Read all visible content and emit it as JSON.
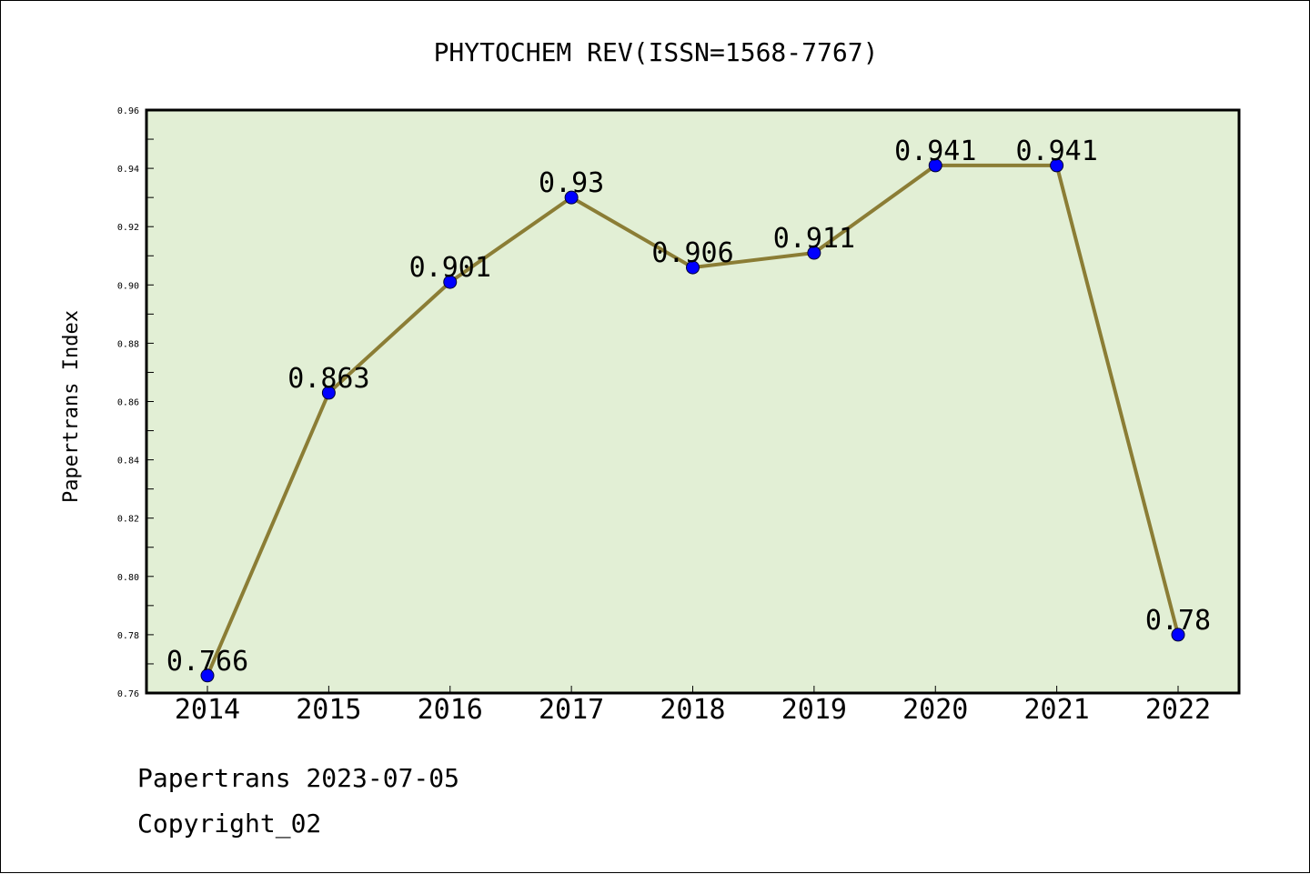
{
  "chart_data": {
    "type": "line",
    "title": "PHYTOCHEM REV(ISSN=1568-7767)",
    "xlabel": "",
    "ylabel": "Papertrans Index",
    "categories": [
      "2014",
      "2015",
      "2016",
      "2017",
      "2018",
      "2019",
      "2020",
      "2021",
      "2022"
    ],
    "values": [
      0.766,
      0.863,
      0.901,
      0.93,
      0.906,
      0.911,
      0.941,
      0.941,
      0.78
    ],
    "value_labels": [
      "0.766",
      "0.863",
      "0.901",
      "0.93",
      "0.906",
      "0.911",
      "0.941",
      "0.941",
      "0.78"
    ],
    "ylim": [
      0.76,
      0.96
    ],
    "yticks": [
      "0.76",
      "0.78",
      "0.80",
      "0.82",
      "0.84",
      "0.86",
      "0.88",
      "0.90",
      "0.92",
      "0.94",
      "0.96"
    ],
    "grid": false,
    "colors": {
      "plot_background": "#e2efd5",
      "line": "#8b7d35",
      "marker": "#0000ff"
    }
  },
  "footer": {
    "line1": "Papertrans 2023-07-05",
    "line2": "Copyright_02"
  }
}
